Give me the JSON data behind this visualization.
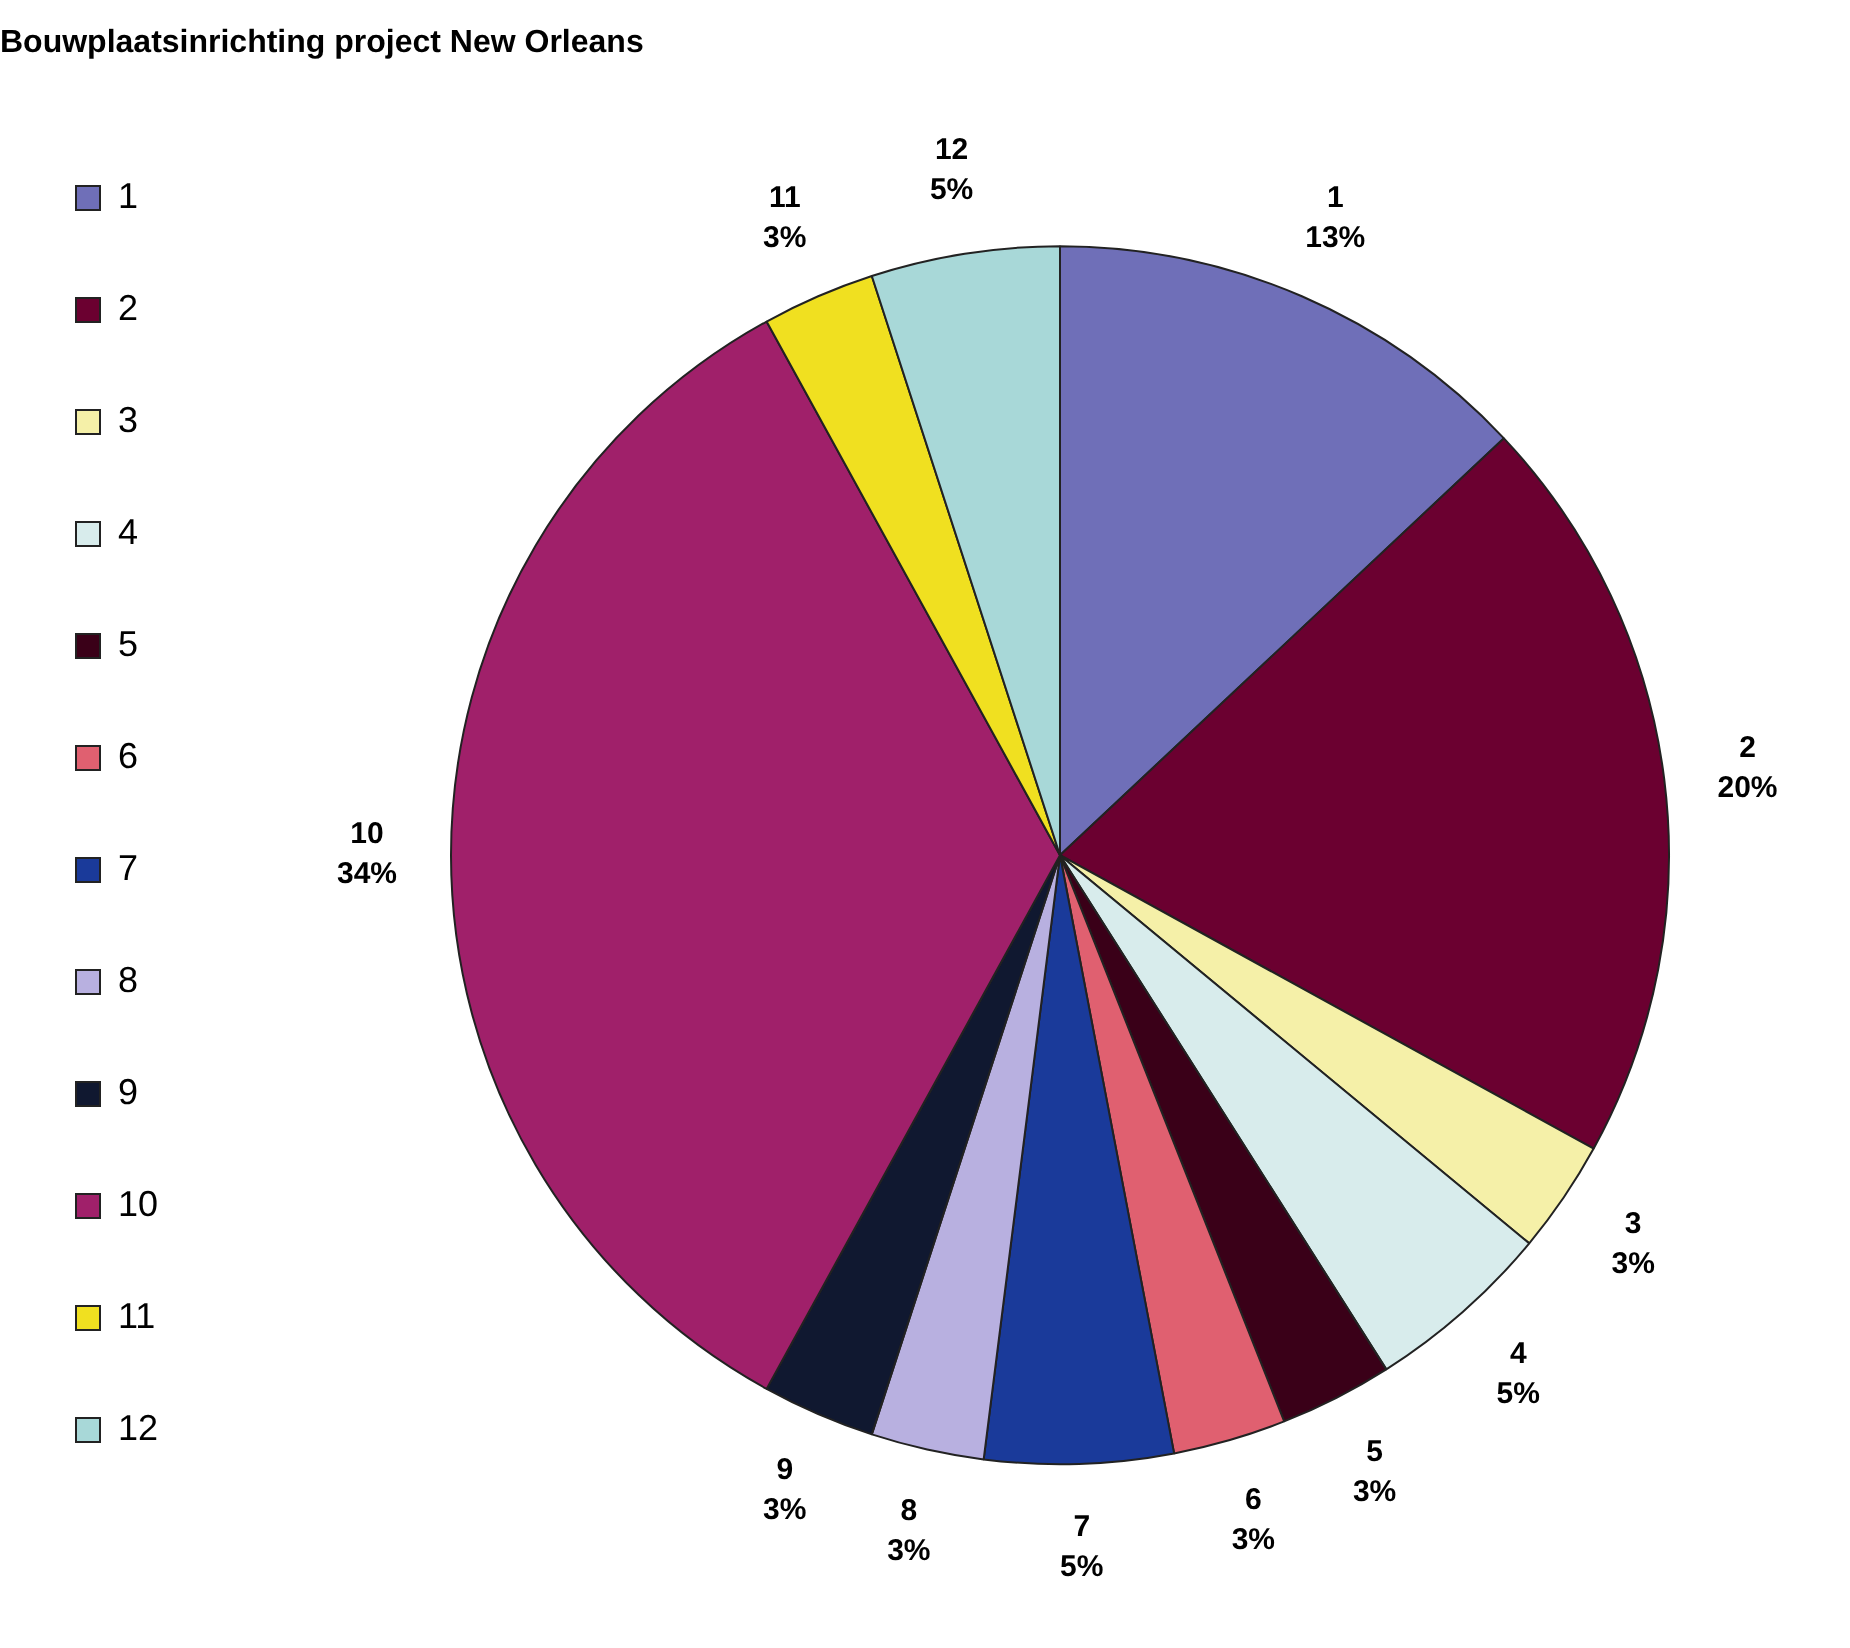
{
  "chart_data": {
    "type": "pie",
    "title": "Bouwplaatsinrichting project New Orleans",
    "categories": [
      "1",
      "2",
      "3",
      "4",
      "5",
      "6",
      "7",
      "8",
      "9",
      "10",
      "11",
      "12"
    ],
    "values": [
      13,
      20,
      3,
      5,
      3,
      3,
      5,
      3,
      3,
      34,
      3,
      5
    ],
    "colors": [
      "#6f6fb8",
      "#6b0030",
      "#f5f0a8",
      "#d8ecec",
      "#3a0018",
      "#e06070",
      "#1a3a9a",
      "#b8b0e0",
      "#101830",
      "#a0206a",
      "#f0e020",
      "#a8d8d8"
    ],
    "value_labels": [
      "13%",
      "20%",
      "3%",
      "5%",
      "3%",
      "3%",
      "5%",
      "3%",
      "3%",
      "34%",
      "3%",
      "5%"
    ],
    "legend": "left"
  }
}
